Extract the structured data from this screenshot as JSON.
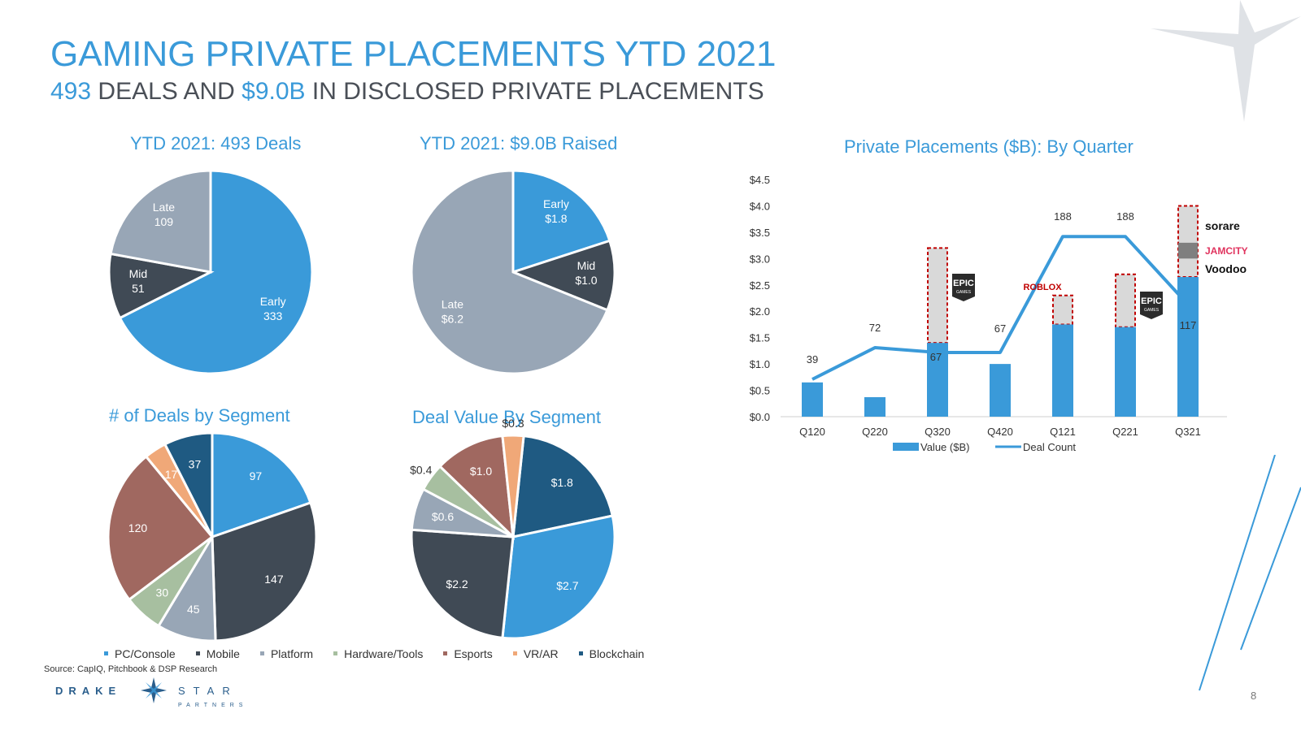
{
  "header": {
    "title": "GAMING PRIVATE PLACEMENTS YTD 2021",
    "subtitle_deals": "493",
    "subtitle_mid1": "DEALS AND",
    "subtitle_value": "$9.0B",
    "subtitle_rest": "IN DISCLOSED PRIVATE PLACEMENTS"
  },
  "colors": {
    "accent": "#3a9ad9",
    "early": "#3a9ad9",
    "mid": "#404a55",
    "late": "#98a6b6",
    "pc_console": "#3a9ad9",
    "mobile": "#404a55",
    "platform": "#98a6b6",
    "hardware_tools": "#a7bfa0",
    "esports": "#a06860",
    "vr_ar": "#f0a878",
    "blockchain": "#1f5a82"
  },
  "chart_data": [
    {
      "type": "pie",
      "title": "YTD 2021: 493 Deals",
      "slices": [
        {
          "name": "Early",
          "value": 333,
          "label": "333"
        },
        {
          "name": "Mid",
          "value": 51,
          "label": "51"
        },
        {
          "name": "Late",
          "value": 109,
          "label": "109"
        }
      ]
    },
    {
      "type": "pie",
      "title": "YTD 2021: $9.0B Raised",
      "slices": [
        {
          "name": "Early",
          "value": 1.8,
          "label": "$1.8"
        },
        {
          "name": "Mid",
          "value": 1.0,
          "label": "$1.0"
        },
        {
          "name": "Late",
          "value": 6.2,
          "label": "$6.2"
        }
      ]
    },
    {
      "type": "pie",
      "title": "# of Deals by Segment",
      "slices": [
        {
          "name": "PC/Console",
          "value": 97,
          "label": "97"
        },
        {
          "name": "Mobile",
          "value": 147,
          "label": "147"
        },
        {
          "name": "Platform",
          "value": 45,
          "label": "45"
        },
        {
          "name": "Hardware/Tools",
          "value": 30,
          "label": "30"
        },
        {
          "name": "Esports",
          "value": 120,
          "label": "120"
        },
        {
          "name": "VR/AR",
          "value": 17,
          "label": "17"
        },
        {
          "name": "Blockchain",
          "value": 37,
          "label": "37"
        }
      ]
    },
    {
      "type": "pie",
      "title": "Deal Value By Segment",
      "slices": [
        {
          "name": "Blockchain",
          "value": 1.8,
          "label": "$1.8"
        },
        {
          "name": "PC/Console",
          "value": 2.7,
          "label": "$2.7"
        },
        {
          "name": "Mobile",
          "value": 2.2,
          "label": "$2.2"
        },
        {
          "name": "Platform",
          "value": 0.6,
          "label": "$0.6"
        },
        {
          "name": "Hardware/Tools",
          "value": 0.4,
          "label": "$0.4"
        },
        {
          "name": "Esports",
          "value": 1.0,
          "label": "$1.0"
        },
        {
          "name": "VR/AR",
          "value": 0.3,
          "label": "$0.3"
        }
      ]
    },
    {
      "type": "bar",
      "title": "Private Placements ($B): By Quarter",
      "categories": [
        "Q120",
        "Q220",
        "Q320",
        "Q420",
        "Q121",
        "Q221",
        "Q321"
      ],
      "series": [
        {
          "name": "Value ($B)",
          "values": [
            0.65,
            0.37,
            1.4,
            1.0,
            1.75,
            1.7,
            2.65
          ]
        },
        {
          "name": "Deal Count",
          "values": [
            39,
            72,
            67,
            67,
            188,
            188,
            117
          ]
        }
      ],
      "highlights": [
        {
          "category": "Q320",
          "from": 1.4,
          "to": 3.2,
          "logos": [
            "EPIC GAMES"
          ]
        },
        {
          "category": "Q121",
          "from": 1.75,
          "to": 2.3,
          "logos": [
            "ROBLOX"
          ]
        },
        {
          "category": "Q221",
          "from": 1.7,
          "to": 2.7,
          "logos": [
            "EPIC GAMES"
          ]
        },
        {
          "category": "Q321",
          "from": 2.65,
          "to": 4.0,
          "logos": [
            "sorare",
            "JAM CITY",
            "Voodoo"
          ]
        }
      ],
      "yticks": [
        "$0.0",
        "$0.5",
        "$1.0",
        "$1.5",
        "$2.0",
        "$2.5",
        "$3.0",
        "$3.5",
        "$4.0",
        "$4.5"
      ],
      "ylim": [
        0,
        4.5
      ],
      "legend": "bottom"
    }
  ],
  "legend": {
    "items": [
      {
        "label": "PC/Console",
        "color": "#3a9ad9"
      },
      {
        "label": "Mobile",
        "color": "#404a55"
      },
      {
        "label": "Platform",
        "color": "#98a6b6"
      },
      {
        "label": "Hardware/Tools",
        "color": "#a7bfa0"
      },
      {
        "label": "Esports",
        "color": "#a06860"
      },
      {
        "label": "VR/AR",
        "color": "#f0a878"
      },
      {
        "label": "Blockchain",
        "color": "#1f5a82"
      }
    ]
  },
  "logos": {
    "epic": [
      "EPIC",
      "GAMES"
    ],
    "roblox": "ROBLOX",
    "sorare": "sorare",
    "jamcity": "JAMCITY",
    "voodoo": "Voodoo"
  },
  "footer": {
    "source": "Source: CapIQ, Pitchbook & DSP Research",
    "brand_left": "DRAKE",
    "brand_right": "STAR",
    "brand_sub": "PARTNERS",
    "page_number": "8"
  }
}
